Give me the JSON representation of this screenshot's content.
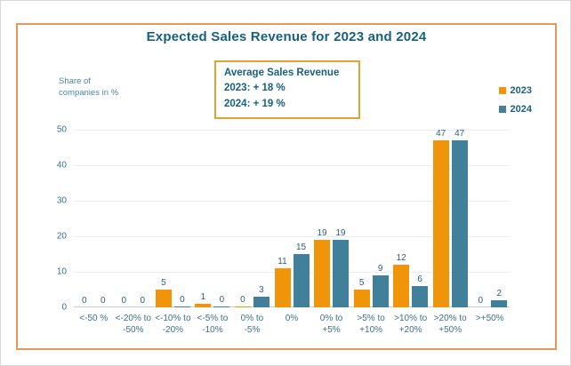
{
  "frame": {
    "outer_border_color": "#d8d8d8",
    "panel_border_color": "#e8975b",
    "background": "#ffffff"
  },
  "y_axis_caption": "Share of\ncompanies in %",
  "annotation_box": {
    "border_color": "#e2a233",
    "text_color": "#17607f"
  },
  "legend": {
    "items": [
      {
        "label": "2023",
        "color": "#f0940a"
      },
      {
        "label": "2024",
        "color": "#41809b"
      }
    ]
  },
  "chart_data": {
    "type": "bar",
    "title": "Expected Sales Revenue for 2023 and 2024",
    "ylabel": "Share of companies in %",
    "xlabel": "",
    "ylim": [
      0,
      50
    ],
    "yticks": [
      0,
      10,
      20,
      30,
      40,
      50
    ],
    "grid": true,
    "legend_position": "top-right",
    "categories": [
      "<-50 %",
      "<-20% to\n-50%",
      "<-10% to\n-20%",
      "<-5% to\n-10%",
      "0% to\n-5%",
      "0%",
      "0% to\n+5%",
      ">5% to\n+10%",
      ">10% to\n+20%",
      ">20% to\n+50%",
      ">+50%"
    ],
    "series": [
      {
        "name": "2023",
        "color": "#f0940a",
        "values": [
          0,
          0,
          5,
          1,
          0,
          11,
          19,
          5,
          12,
          47,
          0
        ],
        "sliver_indices": [
          4
        ]
      },
      {
        "name": "2024",
        "color": "#41809b",
        "values": [
          0,
          0,
          0,
          0,
          3,
          15,
          19,
          9,
          6,
          47,
          2
        ],
        "sliver_indices": [
          2,
          3
        ]
      }
    ],
    "annotations": [
      "Average Sales Revenue",
      "2023: + 18 %",
      "2024: + 19 %"
    ]
  }
}
